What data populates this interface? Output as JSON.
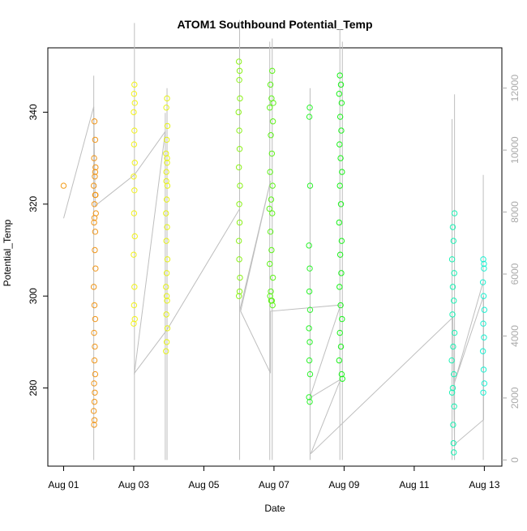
{
  "chart_data": {
    "type": "scatter",
    "title": "ATOM1 Southbound Potential_Temp",
    "xlabel": "Date",
    "ylabel": "Potential_Temp",
    "x_ticks": [
      "Aug 01",
      "Aug 03",
      "Aug 05",
      "Aug 07",
      "Aug 09",
      "Aug 11",
      "Aug 13"
    ],
    "x_tick_values": [
      1,
      3,
      5,
      7,
      9,
      11,
      13
    ],
    "xlim": [
      0.55,
      13.5
    ],
    "ylim": [
      263,
      354
    ],
    "y_ticks": [
      280,
      300,
      320,
      340
    ],
    "y2lim": [
      -200,
      13300
    ],
    "y2_ticks": [
      0,
      2000,
      4000,
      6000,
      8000,
      10000,
      12000
    ],
    "grid": false,
    "series": [
      {
        "day": 1.0,
        "color": "#F29C1A",
        "points": [
          [
            1.0,
            324
          ]
        ]
      },
      {
        "day": 1.9,
        "color": "#F0961A",
        "points": [
          [
            1.88,
            338
          ],
          [
            1.9,
            334
          ],
          [
            1.87,
            330
          ],
          [
            1.91,
            328
          ],
          [
            1.89,
            326
          ],
          [
            1.86,
            324
          ],
          [
            1.9,
            322
          ],
          [
            1.88,
            320
          ],
          [
            1.92,
            318
          ],
          [
            1.87,
            316
          ],
          [
            1.9,
            314
          ],
          [
            1.89,
            310
          ],
          [
            1.91,
            306
          ],
          [
            1.86,
            302
          ],
          [
            1.88,
            298
          ],
          [
            1.9,
            295
          ],
          [
            1.87,
            292
          ],
          [
            1.89,
            289
          ],
          [
            1.88,
            286
          ],
          [
            1.9,
            283
          ],
          [
            1.87,
            281
          ],
          [
            1.89,
            279
          ],
          [
            1.88,
            277
          ],
          [
            1.86,
            275
          ],
          [
            1.88,
            273
          ],
          [
            1.87,
            272
          ],
          [
            1.9,
            327
          ],
          [
            1.91,
            322
          ],
          [
            1.88,
            317
          ]
        ]
      },
      {
        "day": 3.0,
        "color": "#F2F21A",
        "points": [
          [
            3.02,
            346
          ],
          [
            3.01,
            344
          ],
          [
            3.03,
            342
          ],
          [
            3.0,
            340
          ],
          [
            3.02,
            336
          ],
          [
            3.01,
            333
          ],
          [
            3.03,
            329
          ],
          [
            3.0,
            326
          ],
          [
            3.02,
            323
          ],
          [
            3.01,
            318
          ],
          [
            3.03,
            313
          ],
          [
            3.0,
            309
          ],
          [
            3.02,
            302
          ],
          [
            3.01,
            298
          ],
          [
            3.03,
            295
          ],
          [
            3.0,
            294
          ]
        ]
      },
      {
        "day": 3.9,
        "color": "#E6F21A",
        "points": [
          [
            3.95,
            343
          ],
          [
            3.93,
            341
          ],
          [
            3.96,
            337
          ],
          [
            3.94,
            334
          ],
          [
            3.92,
            331
          ],
          [
            3.95,
            329
          ],
          [
            3.93,
            327
          ],
          [
            3.96,
            324
          ],
          [
            3.94,
            321
          ],
          [
            3.92,
            318
          ],
          [
            3.95,
            315
          ],
          [
            3.93,
            312
          ],
          [
            3.96,
            308
          ],
          [
            3.94,
            305
          ],
          [
            3.92,
            302
          ],
          [
            3.95,
            299
          ],
          [
            3.93,
            296
          ],
          [
            3.96,
            293
          ],
          [
            3.94,
            290
          ],
          [
            3.92,
            288
          ],
          [
            3.95,
            330
          ],
          [
            3.93,
            325
          ],
          [
            3.94,
            300
          ]
        ]
      },
      {
        "day": 6.0,
        "color": "#8CF21A",
        "points": [
          [
            6.0,
            351
          ],
          [
            6.02,
            349
          ],
          [
            6.01,
            347
          ],
          [
            6.03,
            343
          ],
          [
            5.99,
            340
          ],
          [
            6.01,
            336
          ],
          [
            6.02,
            332
          ],
          [
            6.0,
            328
          ],
          [
            6.03,
            324
          ],
          [
            6.01,
            320
          ],
          [
            6.02,
            316
          ],
          [
            6.0,
            312
          ],
          [
            6.01,
            308
          ],
          [
            6.03,
            304
          ],
          [
            6.02,
            301
          ],
          [
            6.0,
            300
          ]
        ]
      },
      {
        "day": 6.9,
        "color": "#5EF21A",
        "points": [
          [
            6.95,
            349
          ],
          [
            6.9,
            346
          ],
          [
            6.93,
            343
          ],
          [
            6.88,
            341
          ],
          [
            6.97,
            338
          ],
          [
            6.91,
            335
          ],
          [
            6.94,
            331
          ],
          [
            6.89,
            327
          ],
          [
            6.96,
            324
          ],
          [
            6.92,
            321
          ],
          [
            6.95,
            318
          ],
          [
            6.9,
            314
          ],
          [
            6.93,
            310
          ],
          [
            6.88,
            307
          ],
          [
            6.97,
            304
          ],
          [
            6.91,
            301
          ],
          [
            6.94,
            299
          ],
          [
            6.89,
            300
          ],
          [
            6.96,
            298
          ],
          [
            6.92,
            299
          ],
          [
            6.98,
            342
          ],
          [
            6.87,
            319
          ]
        ]
      },
      {
        "day": 8.0,
        "color": "#2AF22A",
        "points": [
          [
            8.02,
            341
          ],
          [
            8.01,
            339
          ],
          [
            8.03,
            324
          ],
          [
            8.0,
            311
          ],
          [
            8.02,
            306
          ],
          [
            8.01,
            301
          ],
          [
            8.03,
            297
          ],
          [
            8.0,
            293
          ],
          [
            8.02,
            290
          ],
          [
            8.01,
            286
          ],
          [
            8.03,
            283
          ],
          [
            8.0,
            278
          ],
          [
            8.02,
            277
          ]
        ]
      },
      {
        "day": 8.9,
        "color": "#1AF21A",
        "points": [
          [
            8.88,
            348
          ],
          [
            8.91,
            346
          ],
          [
            8.86,
            344
          ],
          [
            8.93,
            342
          ],
          [
            8.89,
            339
          ],
          [
            8.92,
            336
          ],
          [
            8.87,
            333
          ],
          [
            8.9,
            330
          ],
          [
            8.94,
            327
          ],
          [
            8.88,
            324
          ],
          [
            8.91,
            320
          ],
          [
            8.86,
            316
          ],
          [
            8.93,
            312
          ],
          [
            8.89,
            309
          ],
          [
            8.92,
            305
          ],
          [
            8.87,
            302
          ],
          [
            8.9,
            298
          ],
          [
            8.94,
            295
          ],
          [
            8.88,
            292
          ],
          [
            8.91,
            289
          ],
          [
            8.86,
            286
          ],
          [
            8.93,
            283
          ],
          [
            8.95,
            282
          ]
        ]
      },
      {
        "day": 12.1,
        "color": "#1AF2B4",
        "points": [
          [
            12.15,
            318
          ],
          [
            12.1,
            315
          ],
          [
            12.12,
            312
          ],
          [
            12.08,
            308
          ],
          [
            12.14,
            305
          ],
          [
            12.1,
            302
          ],
          [
            12.13,
            299
          ],
          [
            12.09,
            296
          ],
          [
            12.15,
            292
          ],
          [
            12.11,
            289
          ],
          [
            12.07,
            286
          ],
          [
            12.13,
            283
          ],
          [
            12.1,
            280
          ],
          [
            12.08,
            279
          ],
          [
            12.14,
            276
          ],
          [
            12.11,
            272
          ],
          [
            12.12,
            268
          ],
          [
            12.13,
            266
          ]
        ]
      },
      {
        "day": 12.95,
        "color": "#1AF2D2",
        "points": [
          [
            12.97,
            308
          ],
          [
            12.99,
            306
          ],
          [
            12.96,
            303
          ],
          [
            12.98,
            300
          ],
          [
            13.0,
            297
          ],
          [
            12.97,
            294
          ],
          [
            12.99,
            291
          ],
          [
            12.96,
            288
          ],
          [
            12.98,
            284
          ],
          [
            13.0,
            281
          ],
          [
            12.97,
            279
          ],
          [
            12.99,
            307
          ]
        ]
      }
    ],
    "secondary_track": {
      "name": "",
      "color": "#BEBEBE",
      "path": [
        [
          1.0,
          7800
        ],
        [
          1.86,
          11400
        ],
        [
          1.9,
          8200
        ],
        [
          3.02,
          9200
        ],
        [
          3.9,
          10600
        ],
        [
          3.02,
          2800
        ],
        [
          3.95,
          4200
        ],
        [
          6.02,
          8100
        ],
        [
          6.02,
          4800
        ],
        [
          6.9,
          9000
        ],
        [
          6.05,
          4800
        ],
        [
          6.9,
          2800
        ],
        [
          6.9,
          4800
        ],
        [
          8.9,
          5000
        ],
        [
          8.02,
          2000
        ],
        [
          8.9,
          2600
        ],
        [
          8.05,
          200
        ],
        [
          12.1,
          4600
        ],
        [
          12.15,
          500
        ],
        [
          12.98,
          1300
        ],
        [
          12.98,
          5300
        ],
        [
          12.15,
          2500
        ],
        [
          12.98,
          5800
        ]
      ],
      "verticals": [
        [
          1.86,
          0,
          12400
        ],
        [
          3.02,
          0,
          14100
        ],
        [
          3.9,
          0,
          11200
        ],
        [
          3.95,
          0,
          12000
        ],
        [
          6.02,
          0,
          14200
        ],
        [
          6.88,
          0,
          13500
        ],
        [
          6.95,
          0,
          13600
        ],
        [
          8.03,
          0,
          12000
        ],
        [
          8.88,
          0,
          13900
        ],
        [
          8.95,
          0,
          13500
        ],
        [
          12.08,
          0,
          11000
        ],
        [
          12.15,
          0,
          11800
        ],
        [
          12.97,
          0,
          9200
        ]
      ]
    }
  }
}
